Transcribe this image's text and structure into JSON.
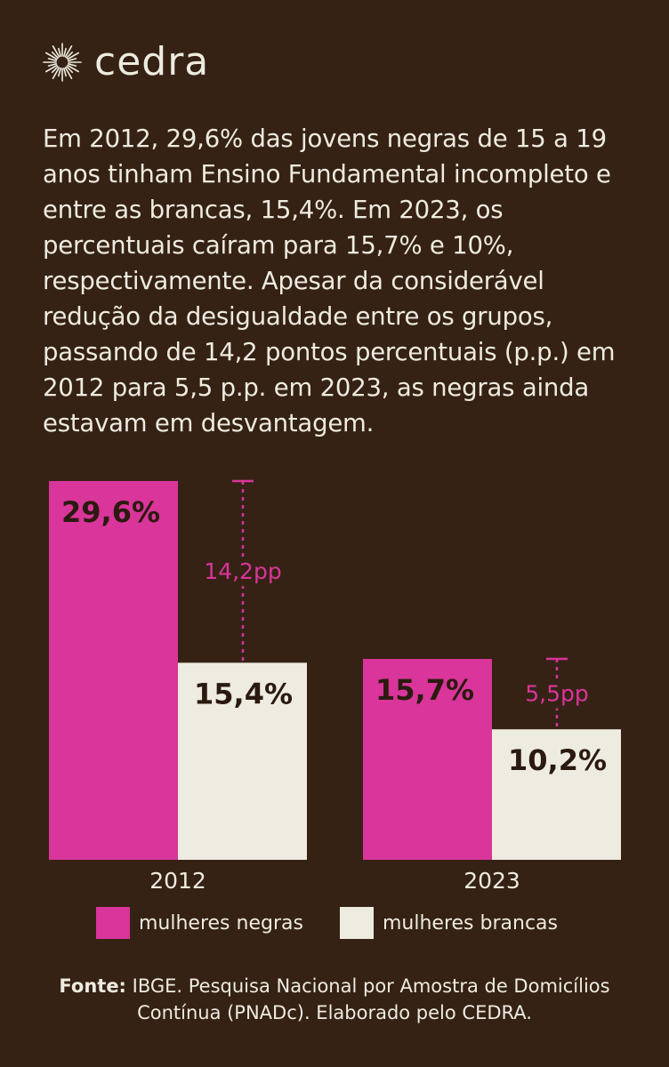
{
  "brand": {
    "name": "cedra",
    "logo_icon": "sunburst-icon"
  },
  "description": "Em 2012, 29,6% das jovens negras de 15 a 19 anos tinham Ensino Fundamental incompleto e entre as brancas, 15,4%. Em 2023, os percentuais caíram para 15,7% e 10%, respectivamente. Apesar da considerável redução da desigualdade entre os grupos, passando de 14,2 pontos percentuais (p.p.) em 2012 para 5,5 p.p. em 2023, as negras ainda estavam em desvantagem.",
  "colors": {
    "background": "#352214",
    "negras": "#d9359a",
    "brancas": "#eeebe0",
    "text_light": "#eeebe0",
    "text_dark": "#2b1a10",
    "gap_accent": "#d9359a"
  },
  "chart_data": {
    "type": "bar",
    "categories": [
      "2012",
      "2023"
    ],
    "series": [
      {
        "name": "mulheres negras",
        "values": [
          29.6,
          15.7
        ],
        "labels": [
          "29,6%",
          "15,7%"
        ]
      },
      {
        "name": "mulheres brancas",
        "values": [
          15.4,
          10.2
        ],
        "labels": [
          "15,4%",
          "10,2%"
        ]
      }
    ],
    "gaps": [
      {
        "category": "2012",
        "value": 14.2,
        "label": "14,2pp"
      },
      {
        "category": "2023",
        "value": 5.5,
        "label": "5,5pp"
      }
    ],
    "title": "",
    "xlabel": "",
    "ylabel": "",
    "ylim": [
      0,
      29.6
    ],
    "grid": false,
    "legend_position": "bottom"
  },
  "legend": {
    "negras_label": "mulheres negras",
    "brancas_label": "mulheres brancas"
  },
  "source": {
    "prefix": "Fonte:",
    "text": " IBGE. Pesquisa Nacional por Amostra de Domicílios Contínua (PNADc). Elaborado pelo CEDRA."
  }
}
